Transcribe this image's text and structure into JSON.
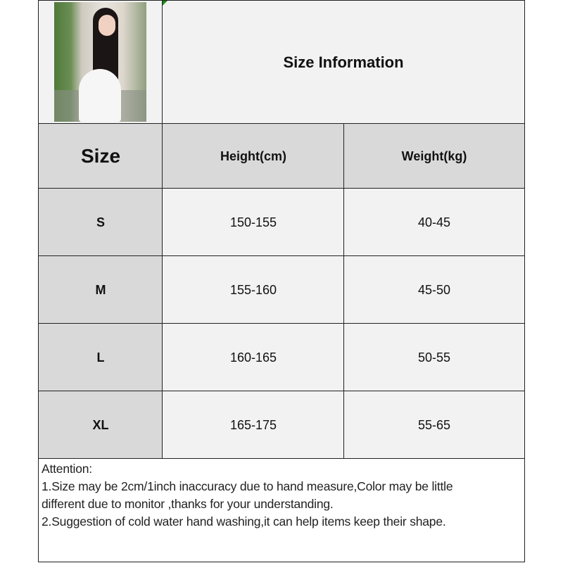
{
  "title": "Size Information",
  "headers": {
    "size": "Size",
    "height": "Height(cm)",
    "weight": "Weight(kg)"
  },
  "rows": [
    {
      "size": "S",
      "height": "150-155",
      "weight": "40-45"
    },
    {
      "size": "M",
      "height": "155-160",
      "weight": "45-50"
    },
    {
      "size": "L",
      "height": "160-165",
      "weight": "50-55"
    },
    {
      "size": "XL",
      "height": "165-175",
      "weight": "55-65"
    }
  ],
  "notes": {
    "heading": "Attention:",
    "line1a": "1.Size may be 2cm/1inch inaccuracy due to hand measure,Color may be little",
    "line1b": "different due to monitor ,thanks for your understanding.",
    "line2": "2.Suggestion of cold water hand washing,it can help items keep their shape."
  },
  "colors": {
    "header_bg": "#d9d9d9",
    "cell_bg": "#f2f2f2",
    "border": "#222222"
  }
}
